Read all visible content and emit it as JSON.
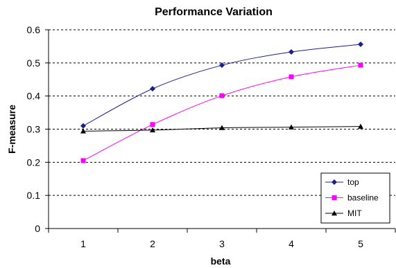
{
  "chart_data": {
    "type": "line",
    "title": "Performance Variation",
    "xlabel": "beta",
    "ylabel": "F-measure",
    "categories": [
      "1",
      "2",
      "3",
      "4",
      "5"
    ],
    "x": [
      1,
      2,
      3,
      4,
      5
    ],
    "ylim": [
      0,
      0.6
    ],
    "yticks": [
      "0",
      "0.1",
      "0.2",
      "0.3",
      "0.4",
      "0.5",
      "0.6"
    ],
    "grid": "horizontal dashed",
    "legend_position": "bottom-right",
    "series": [
      {
        "name": "top",
        "values": [
          0.31,
          0.422,
          0.493,
          0.533,
          0.556
        ],
        "color": "#1a1f8c",
        "marker": "diamond"
      },
      {
        "name": "baseline",
        "values": [
          0.205,
          0.314,
          0.401,
          0.458,
          0.493
        ],
        "color": "#ff00ff",
        "marker": "square"
      },
      {
        "name": "MIT",
        "values": [
          0.294,
          0.297,
          0.304,
          0.306,
          0.308
        ],
        "color": "#000000",
        "marker": "triangle"
      }
    ]
  }
}
